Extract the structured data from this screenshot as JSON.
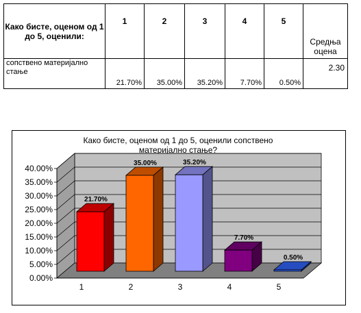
{
  "table": {
    "question": "Како бисте, оценом од 1 до 5, оценили:",
    "grades": [
      "1",
      "2",
      "3",
      "4",
      "5"
    ],
    "mean_header": "Средња оцена",
    "row_label": "сопствено материјално стање",
    "row_values": [
      "21.70%",
      "35.00%",
      "35.20%",
      "7.70%",
      "0.50%"
    ],
    "row_mean": "2.30"
  },
  "chart_data": {
    "type": "bar",
    "title_lines": [
      "Како бисте, оценом од 1 до 5, оценили сопствено",
      "материјално стање?"
    ],
    "categories": [
      "1",
      "2",
      "3",
      "4",
      "5"
    ],
    "values": [
      21.7,
      35.0,
      35.2,
      7.7,
      0.5
    ],
    "data_labels": [
      "21.70%",
      "35.00%",
      "35.20%",
      "7.70%",
      "0.50%"
    ],
    "y_ticks": [
      "0.00%",
      "5.00%",
      "10.00%",
      "15.00%",
      "20.00%",
      "25.00%",
      "30.00%",
      "35.00%",
      "40.00%"
    ],
    "ylim": [
      0,
      40
    ],
    "grid": true,
    "legend": "none",
    "bar_colors": [
      "#ff0000",
      "#ff6600",
      "#9999ff",
      "#800080",
      "#3366ff"
    ],
    "wall_color": "#c0c0c0",
    "floor_color": "#808080"
  }
}
